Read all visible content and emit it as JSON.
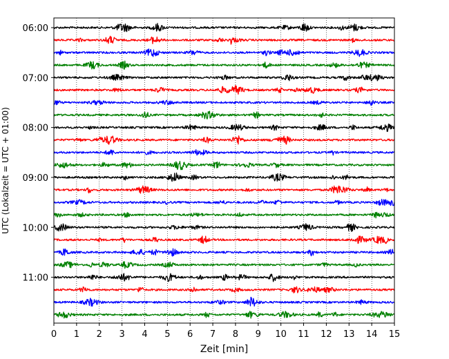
{
  "chart_data": {
    "type": "line",
    "title": "",
    "xlabel": "Zeit  [min]",
    "ylabel": "UTC (Lokalzeit = UTC + 01:00)",
    "xlim": [
      0,
      15
    ],
    "x_ticks": [
      "0",
      "1",
      "2",
      "3",
      "4",
      "5",
      "6",
      "7",
      "8",
      "9",
      "10",
      "11",
      "12",
      "13",
      "14",
      "15"
    ],
    "y_ticks": [
      "06:00",
      "07:00",
      "08:00",
      "09:00",
      "10:00",
      "11:00"
    ],
    "vertical_grid": "dotted",
    "trace_interval_minutes": 15,
    "color_cycle": [
      "#000000",
      "#ff0000",
      "#0000ff",
      "#008000"
    ],
    "traces": [
      {
        "start": "06:00",
        "color": "#000000"
      },
      {
        "start": "06:15",
        "color": "#ff0000"
      },
      {
        "start": "06:30",
        "color": "#0000ff"
      },
      {
        "start": "06:45",
        "color": "#008000"
      },
      {
        "start": "07:00",
        "color": "#000000"
      },
      {
        "start": "07:15",
        "color": "#ff0000"
      },
      {
        "start": "07:30",
        "color": "#0000ff"
      },
      {
        "start": "07:45",
        "color": "#008000"
      },
      {
        "start": "08:00",
        "color": "#000000"
      },
      {
        "start": "08:15",
        "color": "#ff0000"
      },
      {
        "start": "08:30",
        "color": "#0000ff"
      },
      {
        "start": "08:45",
        "color": "#008000"
      },
      {
        "start": "09:00",
        "color": "#000000"
      },
      {
        "start": "09:15",
        "color": "#ff0000"
      },
      {
        "start": "09:30",
        "color": "#0000ff"
      },
      {
        "start": "09:45",
        "color": "#008000"
      },
      {
        "start": "10:00",
        "color": "#000000"
      },
      {
        "start": "10:15",
        "color": "#ff0000"
      },
      {
        "start": "10:30",
        "color": "#0000ff"
      },
      {
        "start": "10:45",
        "color": "#008000"
      },
      {
        "start": "11:00",
        "color": "#000000"
      },
      {
        "start": "11:15",
        "color": "#ff0000"
      },
      {
        "start": "11:30",
        "color": "#0000ff"
      },
      {
        "start": "11:45",
        "color": "#008000"
      }
    ]
  }
}
